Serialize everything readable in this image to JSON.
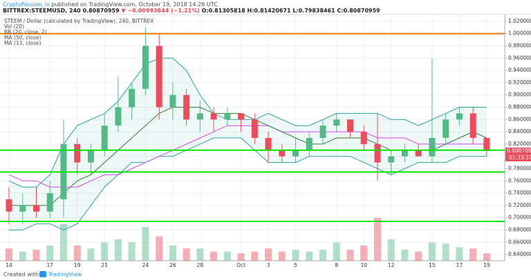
{
  "chart_data": {
    "type": "candlestick",
    "header": {
      "author": "CryptoPassion_io",
      "published": "published on TradingView.com, October 19, 2018 14:26 UTC",
      "symbol": "BITTREX:STEEMUSD, 240",
      "price": "0.80870959",
      "change": "▼ −0.00993844 (−1.21%)",
      "ohlc": "O:0.81305818 H:0.81420671 L:0.79838461 C:0.80870959"
    },
    "footer": {
      "created": "Created with",
      "brand": "TradingView"
    },
    "categories": [
      "14",
      null,
      null,
      "17",
      null,
      "19",
      null,
      "21",
      null,
      null,
      "24",
      null,
      "26",
      null,
      "28",
      null,
      null,
      "Oct",
      null,
      "3",
      null,
      "5",
      null,
      null,
      "8",
      null,
      "10",
      null,
      "12",
      null,
      null,
      "15",
      null,
      "17",
      null,
      "19"
    ],
    "ylim": [
      0.63,
      1.03
    ],
    "yticks": [
      {
        "value": 0.64,
        "label": "0.64000000"
      },
      {
        "value": 0.66,
        "label": "0.66000000"
      },
      {
        "value": 0.68,
        "label": "0.68000000"
      },
      {
        "value": 0.7,
        "label": "0.70000000"
      },
      {
        "value": 0.72,
        "label": "0.72000000"
      },
      {
        "value": 0.74,
        "label": "0.74000000"
      },
      {
        "value": 0.76,
        "label": "0.76000000"
      },
      {
        "value": 0.78,
        "label": "0.78000000"
      },
      {
        "value": 0.8,
        "label": "0.80000000"
      },
      {
        "value": 0.82,
        "label": "0.82000000"
      },
      {
        "value": 0.84,
        "label": "0.84000000"
      },
      {
        "value": 0.86,
        "label": "0.86000000"
      },
      {
        "value": 0.88,
        "label": "0.88000000"
      },
      {
        "value": 0.9,
        "label": "0.90000000"
      },
      {
        "value": 0.92,
        "label": "0.92000000"
      },
      {
        "value": 0.94,
        "label": "0.94000000"
      },
      {
        "value": 0.96,
        "label": "0.96000000"
      },
      {
        "value": 0.98,
        "label": "0.98000000"
      },
      {
        "value": 1.0,
        "label": "1.00000000"
      },
      {
        "value": 1.02,
        "label": "1.02000000"
      }
    ],
    "grid": true,
    "series": [
      {
        "name": "STEEM / Dollar (calculated by TradingView), 240, BITTREX",
        "kind": "candles",
        "up_color": "#53b987",
        "down_color": "#eb4d5c",
        "open": [
          0.73,
          0.71,
          0.72,
          0.71,
          0.73,
          0.82,
          0.79,
          0.81,
          0.85,
          0.88,
          0.91,
          0.98,
          0.88,
          0.9,
          0.86,
          0.87,
          0.86,
          0.87,
          0.86,
          0.83,
          0.81,
          0.8,
          0.81,
          0.83,
          0.85,
          0.86,
          0.84,
          0.82,
          0.79,
          0.8,
          0.81,
          0.8,
          0.83,
          0.86,
          0.87,
          0.83
        ],
        "high": [
          0.75,
          0.74,
          0.75,
          0.76,
          0.86,
          0.83,
          0.82,
          0.87,
          0.93,
          0.92,
          1.01,
          1.0,
          0.92,
          0.91,
          0.89,
          0.88,
          0.88,
          0.87,
          0.87,
          0.84,
          0.82,
          0.83,
          0.84,
          0.86,
          0.87,
          0.86,
          0.85,
          0.87,
          0.81,
          0.82,
          0.82,
          0.96,
          0.87,
          0.88,
          0.88,
          0.83
        ],
        "low": [
          0.69,
          0.69,
          0.7,
          0.7,
          0.7,
          0.77,
          0.77,
          0.8,
          0.84,
          0.86,
          0.9,
          0.86,
          0.86,
          0.85,
          0.84,
          0.84,
          0.85,
          0.84,
          0.82,
          0.79,
          0.79,
          0.79,
          0.8,
          0.82,
          0.84,
          0.83,
          0.81,
          0.76,
          0.77,
          0.79,
          0.8,
          0.79,
          0.82,
          0.85,
          0.82,
          0.8
        ],
        "close": [
          0.71,
          0.72,
          0.71,
          0.74,
          0.82,
          0.79,
          0.81,
          0.85,
          0.88,
          0.91,
          0.98,
          0.88,
          0.9,
          0.86,
          0.87,
          0.86,
          0.87,
          0.86,
          0.83,
          0.81,
          0.8,
          0.81,
          0.83,
          0.85,
          0.86,
          0.84,
          0.82,
          0.79,
          0.8,
          0.81,
          0.8,
          0.83,
          0.86,
          0.87,
          0.83,
          0.80870959
        ],
        "last_label": "0.80870959",
        "countdown": "01:33:37"
      },
      {
        "name": "Vol (20)",
        "kind": "volume",
        "values": [
          20,
          15,
          18,
          25,
          60,
          25,
          20,
          30,
          35,
          30,
          55,
          40,
          25,
          20,
          20,
          15,
          15,
          12,
          15,
          20,
          15,
          18,
          15,
          18,
          30,
          18,
          25,
          70,
          35,
          18,
          15,
          30,
          28,
          22,
          20,
          12
        ]
      },
      {
        "name": "BB (20, close, 2)",
        "kind": "band",
        "color": "#26a69a",
        "upper": [
          0.76,
          0.75,
          0.75,
          0.77,
          0.82,
          0.85,
          0.86,
          0.87,
          0.89,
          0.92,
          0.95,
          0.96,
          0.96,
          0.94,
          0.9,
          0.87,
          0.86,
          0.86,
          0.86,
          0.87,
          0.86,
          0.85,
          0.85,
          0.86,
          0.87,
          0.87,
          0.87,
          0.87,
          0.86,
          0.86,
          0.85,
          0.86,
          0.87,
          0.88,
          0.88,
          0.88
        ],
        "lower": [
          0.68,
          0.68,
          0.69,
          0.69,
          0.68,
          0.69,
          0.72,
          0.75,
          0.77,
          0.79,
          0.79,
          0.8,
          0.8,
          0.81,
          0.82,
          0.83,
          0.83,
          0.83,
          0.81,
          0.79,
          0.79,
          0.79,
          0.8,
          0.8,
          0.8,
          0.8,
          0.79,
          0.78,
          0.77,
          0.78,
          0.79,
          0.79,
          0.79,
          0.8,
          0.8,
          0.8
        ]
      },
      {
        "name": "MA (50, close)",
        "kind": "line",
        "color": "#e040fb",
        "values": [
          0.77,
          0.76,
          0.76,
          0.75,
          0.75,
          0.75,
          0.76,
          0.77,
          0.77,
          0.78,
          0.79,
          0.8,
          0.81,
          0.82,
          0.83,
          0.84,
          0.85,
          0.85,
          0.85,
          0.85,
          0.84,
          0.84,
          0.84,
          0.84,
          0.84,
          0.84,
          0.84,
          0.83,
          0.83,
          0.83,
          0.82,
          0.82,
          0.82,
          0.82,
          0.82,
          0.82
        ]
      },
      {
        "name": "MA (13, close)",
        "kind": "line",
        "color": "#2e7d32",
        "values": [
          0.72,
          0.72,
          0.72,
          0.72,
          0.74,
          0.76,
          0.77,
          0.79,
          0.81,
          0.83,
          0.85,
          0.87,
          0.88,
          0.88,
          0.88,
          0.87,
          0.87,
          0.87,
          0.86,
          0.85,
          0.84,
          0.83,
          0.82,
          0.82,
          0.83,
          0.83,
          0.83,
          0.82,
          0.81,
          0.81,
          0.81,
          0.81,
          0.82,
          0.83,
          0.84,
          0.83
        ]
      }
    ],
    "hlines": [
      {
        "value": 1.0,
        "color": "#f57c00"
      },
      {
        "value": 0.81,
        "color": "#00e600"
      },
      {
        "value": 0.7745,
        "color": "#00e600"
      },
      {
        "value": 0.694,
        "color": "#00e600"
      }
    ]
  }
}
